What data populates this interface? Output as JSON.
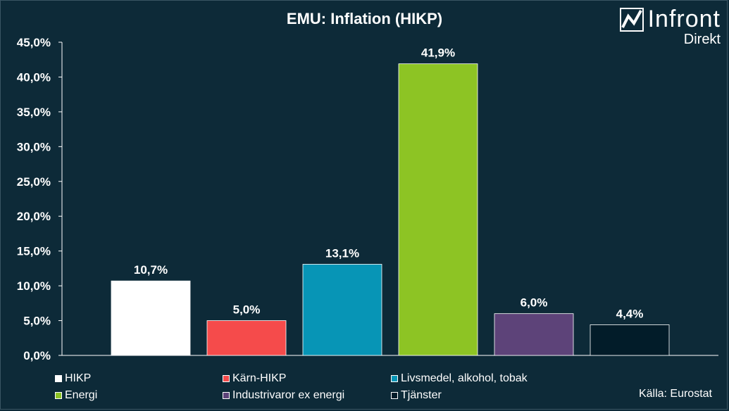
{
  "title": "EMU: Inflation (HIKP)",
  "logo": {
    "name": "Infront",
    "sub": "Direkt"
  },
  "source": "Källa:  Eurostat",
  "colors": {
    "background": "#0d2a38",
    "HIKP": "#ffffff",
    "Karn": "#f54b4b",
    "Livsmedel": "#0795b6",
    "Energi": "#8dc424",
    "Industrivaror": "#5d4379",
    "Tjanster": "#021c29"
  },
  "chart_data": {
    "type": "bar",
    "title": "EMU: Inflation (HIKP)",
    "categories": [
      "HIKP",
      "Kärn-HIKP",
      "Livsmedel, alkohol, tobak",
      "Energi",
      "Industrivaror ex energi",
      "Tjänster"
    ],
    "values": [
      10.7,
      5.0,
      13.1,
      41.9,
      6.0,
      4.4
    ],
    "value_labels": [
      "10,7%",
      "5,0%",
      "13,1%",
      "41,9%",
      "6,0%",
      "4,4%"
    ],
    "bar_colors": [
      "#ffffff",
      "#f54b4b",
      "#0795b6",
      "#8dc424",
      "#5d4379",
      "#021c29"
    ],
    "ylim": [
      0,
      45
    ],
    "yticks": [
      "0,0%",
      "5,0%",
      "10,0%",
      "15,0%",
      "20,0%",
      "25,0%",
      "30,0%",
      "35,0%",
      "40,0%",
      "45,0%"
    ],
    "xlabel": "",
    "ylabel": "",
    "grid": false,
    "legend": "bottom"
  },
  "legend": [
    {
      "label": "HIKP",
      "color": "#ffffff"
    },
    {
      "label": "Kärn-HIKP",
      "color": "#f54b4b"
    },
    {
      "label": "Livsmedel, alkohol, tobak",
      "color": "#0795b6"
    },
    {
      "label": "Energi",
      "color": "#8dc424"
    },
    {
      "label": "Industrivaror ex energi",
      "color": "#5d4379"
    },
    {
      "label": "Tjänster",
      "color": "#021c29"
    }
  ]
}
